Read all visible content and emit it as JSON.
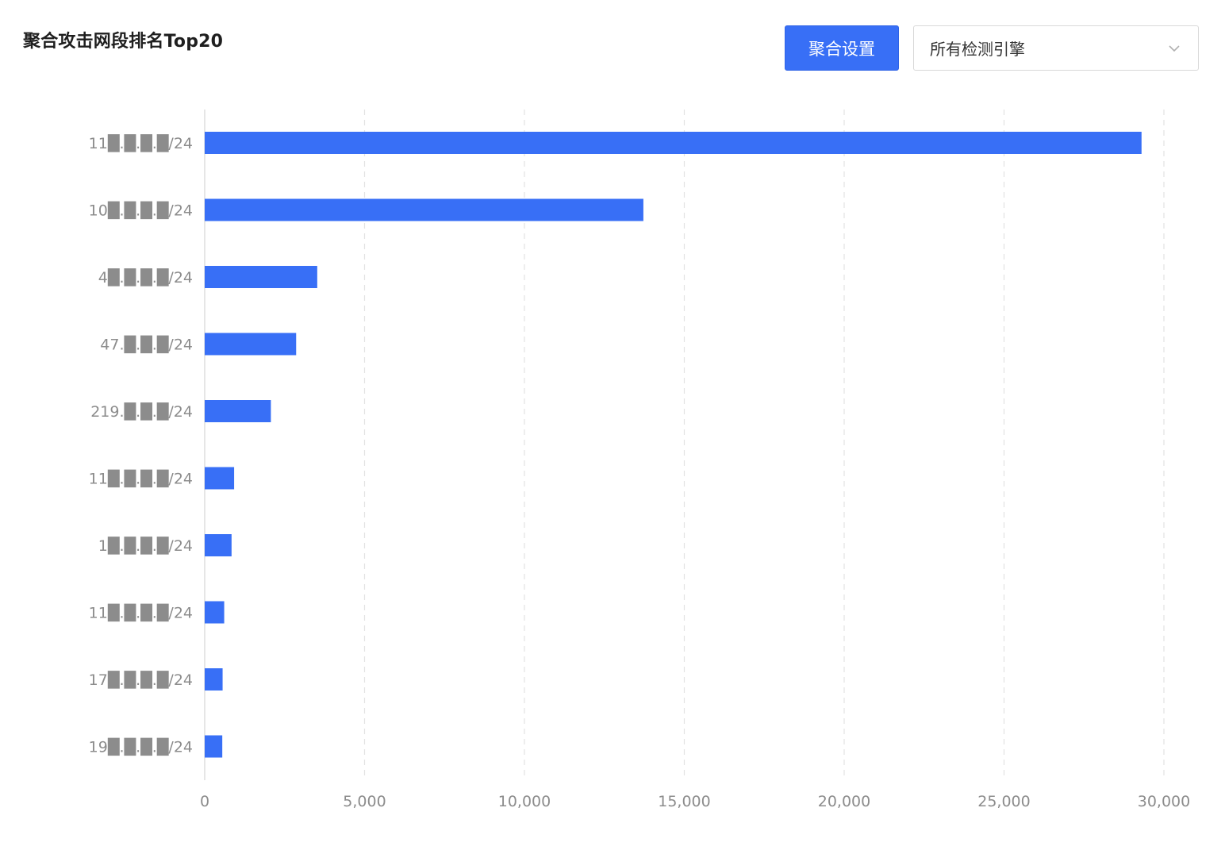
{
  "header": {
    "title": "聚合攻击网段排名Top20",
    "aggregate_button_label": "聚合设置",
    "engine_select_value": "所有检测引擎",
    "engine_select_icon": "chevron-down-icon"
  },
  "colors": {
    "bar": "#386ff6",
    "button": "#386ff6",
    "grid": "#e3e3e3",
    "axis_text": "#8c8c8c"
  },
  "chart_data": {
    "type": "bar",
    "orientation": "horizontal",
    "title": "",
    "xlabel": "",
    "ylabel": "",
    "xlim": [
      0,
      30000
    ],
    "x_ticks": [
      0,
      5000,
      10000,
      15000,
      20000,
      25000,
      30000
    ],
    "x_tick_labels": [
      "0",
      "5,000",
      "10,000",
      "15,000",
      "20,000",
      "25,000",
      "30,000"
    ],
    "grid": "vertical dashed",
    "categories": [
      "11█.█.█.█/24",
      "10█.█.█.█/24",
      "4█.█.█.█/24",
      "47.█.█.█/24",
      "219.█.█.█/24",
      "11█.█.█.█/24",
      "1█.█.█.█/24",
      "11█.█.█.█/24",
      "17█.█.█.█/24",
      "19█.█.█.█/24"
    ],
    "values": [
      29300,
      13720,
      3520,
      2860,
      2070,
      920,
      840,
      610,
      560,
      550
    ]
  }
}
